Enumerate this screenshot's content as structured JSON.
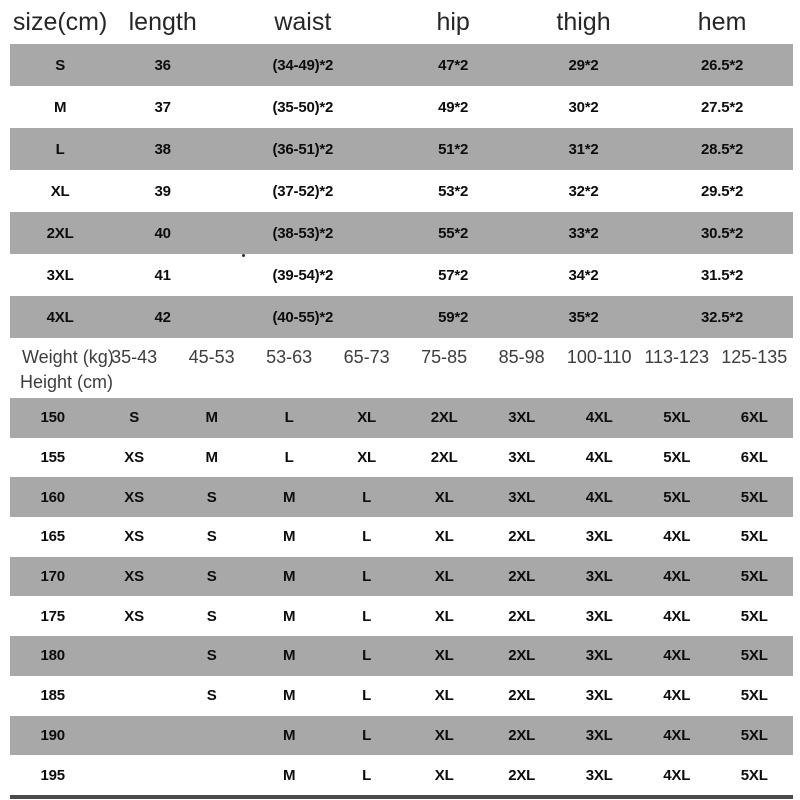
{
  "size_table": {
    "headers": [
      "size(cm)",
      "length",
      "waist",
      "hip",
      "thigh",
      "hem"
    ],
    "rows": [
      {
        "cells": [
          "S",
          "36",
          "(34-49)*2",
          "47*2",
          "29*2",
          "26.5*2"
        ]
      },
      {
        "cells": [
          "M",
          "37",
          "(35-50)*2",
          "49*2",
          "30*2",
          "27.5*2"
        ]
      },
      {
        "cells": [
          "L",
          "38",
          "(36-51)*2",
          "51*2",
          "31*2",
          "28.5*2"
        ]
      },
      {
        "cells": [
          "XL",
          "39",
          "(37-52)*2",
          "53*2",
          "32*2",
          "29.5*2"
        ]
      },
      {
        "cells": [
          "2XL",
          "40",
          "(38-53)*2",
          "55*2",
          "33*2",
          "30.5*2"
        ]
      },
      {
        "cells": [
          "3XL",
          "41",
          "(39-54)*2",
          "57*2",
          "34*2",
          "31.5*2"
        ]
      },
      {
        "cells": [
          "4XL",
          "42",
          "(40-55)*2",
          "59*2",
          "35*2",
          "32.5*2"
        ]
      }
    ]
  },
  "fit_table": {
    "weight_label": "Weight (kg)",
    "height_label": "Height (cm)",
    "weight_columns": [
      "35-43",
      "45-53",
      "53-63",
      "65-73",
      "75-85",
      "85-98",
      "100-110",
      "113-123",
      "125-135"
    ],
    "rows": [
      {
        "height": "150",
        "sizes": [
          "S",
          "M",
          "L",
          "XL",
          "2XL",
          "3XL",
          "4XL",
          "5XL",
          "6XL"
        ]
      },
      {
        "height": "155",
        "sizes": [
          "XS",
          "M",
          "L",
          "XL",
          "2XL",
          "3XL",
          "4XL",
          "5XL",
          "6XL"
        ]
      },
      {
        "height": "160",
        "sizes": [
          "XS",
          "S",
          "M",
          "L",
          "XL",
          "3XL",
          "4XL",
          "5XL",
          "5XL"
        ]
      },
      {
        "height": "165",
        "sizes": [
          "XS",
          "S",
          "M",
          "L",
          "XL",
          "2XL",
          "3XL",
          "4XL",
          "5XL"
        ]
      },
      {
        "height": "170",
        "sizes": [
          "XS",
          "S",
          "M",
          "L",
          "XL",
          "2XL",
          "3XL",
          "4XL",
          "5XL"
        ]
      },
      {
        "height": "175",
        "sizes": [
          "XS",
          "S",
          "M",
          "L",
          "XL",
          "2XL",
          "3XL",
          "4XL",
          "5XL"
        ]
      },
      {
        "height": "180",
        "sizes": [
          "",
          "S",
          "M",
          "L",
          "XL",
          "2XL",
          "3XL",
          "4XL",
          "5XL"
        ]
      },
      {
        "height": "185",
        "sizes": [
          "",
          "S",
          "M",
          "L",
          "XL",
          "2XL",
          "3XL",
          "4XL",
          "5XL"
        ]
      },
      {
        "height": "190",
        "sizes": [
          "",
          "",
          "M",
          "L",
          "XL",
          "2XL",
          "3XL",
          "4XL",
          "5XL"
        ]
      },
      {
        "height": "195",
        "sizes": [
          "",
          "",
          "M",
          "L",
          "XL",
          "2XL",
          "3XL",
          "4XL",
          "5XL"
        ]
      }
    ]
  },
  "colors": {
    "stripe_gray": "#a8a8a8",
    "bottom_rule": "#4a4a4a"
  }
}
